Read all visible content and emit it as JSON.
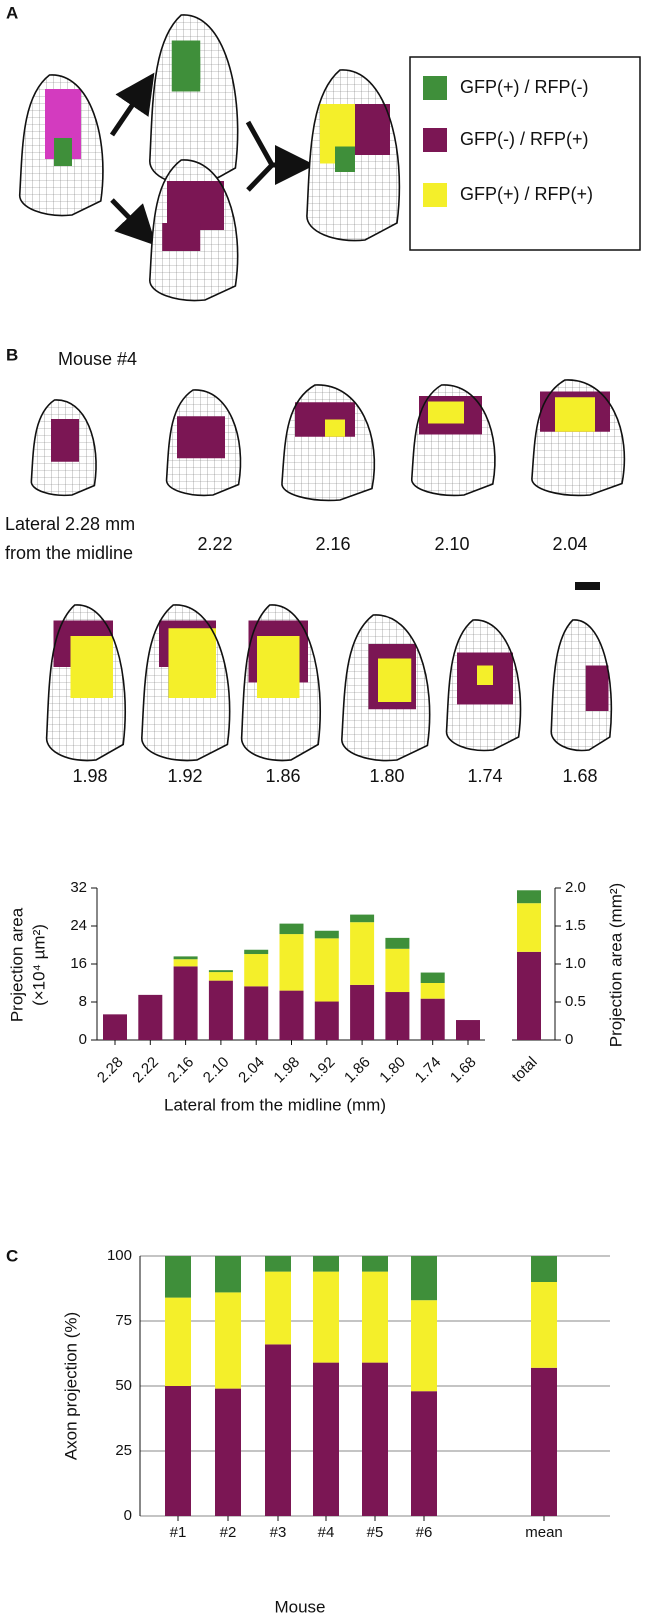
{
  "panel_a": {
    "label": "A"
  },
  "panel_b": {
    "label": "B",
    "mouse": "Mouse #4",
    "first_slice_label": [
      "Lateral 2.28 mm",
      "from the midline"
    ],
    "slice_labels": [
      "2.22",
      "2.16",
      "2.10",
      "2.04",
      "1.98",
      "1.92",
      "1.86",
      "1.80",
      "1.74",
      "1.68"
    ]
  },
  "panel_c": {
    "label": "C"
  },
  "chart_data": [
    {
      "type": "stacked_bar",
      "categories": [
        "2.28",
        "2.22",
        "2.16",
        "2.10",
        "2.04",
        "1.98",
        "1.92",
        "1.86",
        "1.80",
        "1.74",
        "1.68"
      ],
      "series": [
        {
          "name": "GFP(-) / RFP(+)",
          "color": "#7b1654",
          "values": [
            5.4,
            9.5,
            15.5,
            12.5,
            11.3,
            10.4,
            8.1,
            11.6,
            10.1,
            8.7,
            4.2
          ]
        },
        {
          "name": "GFP(+) / RFP(+)",
          "color": "#f4ef2a",
          "values": [
            0,
            0,
            1.5,
            1.8,
            6.8,
            11.9,
            13.3,
            13.2,
            9.1,
            3.3,
            0
          ]
        },
        {
          "name": "GFP(+) / RFP(-)",
          "color": "#3f8f3a",
          "values": [
            0,
            0,
            0.6,
            0.4,
            0.9,
            2.2,
            1.6,
            1.6,
            2.3,
            2.2,
            0
          ]
        }
      ],
      "total": {
        "category": "total",
        "axis": "y2",
        "values": [
          1.16,
          0.64,
          0.17
        ]
      },
      "ylim": [
        0,
        32
      ],
      "yticks": [
        0,
        8,
        16,
        24,
        32
      ],
      "y2lim": [
        0,
        2
      ],
      "y2ticks": [
        0,
        0.5,
        {
          "value": 1,
          "label": "1.0"
        },
        1.5,
        {
          "value": 2,
          "label": "2.0"
        }
      ],
      "ylabel": [
        "Projection area",
        "(×10⁴ µm²)"
      ],
      "y2label": "Projection area (mm²)",
      "xlabel": "Lateral from the midline (mm)"
    },
    {
      "type": "stacked_bar",
      "categories": [
        "#1",
        "#2",
        "#3",
        "#4",
        "#5",
        "#6",
        "mean"
      ],
      "series": [
        {
          "color": "#7b1654",
          "values": [
            50,
            49,
            66,
            59,
            59,
            48,
            57
          ]
        },
        {
          "color": "#f4ef2a",
          "values": [
            34,
            37,
            28,
            35,
            35,
            35,
            33
          ]
        },
        {
          "color": "#3f8f3a",
          "values": [
            16,
            14,
            6,
            6,
            6,
            17,
            10
          ]
        }
      ],
      "ylim": [
        0,
        100
      ],
      "yticks": [
        0,
        25,
        50,
        75,
        100
      ],
      "grid": true,
      "ylabel": "Axon projection (%)",
      "xlabel": "Mouse"
    }
  ]
}
